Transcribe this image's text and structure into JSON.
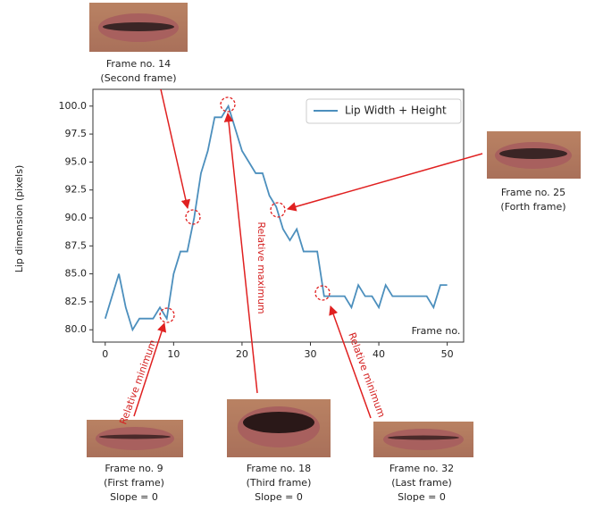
{
  "chart_data": {
    "type": "line",
    "ylabel": "Lip dimension (pixels)",
    "xlabel": "Frame no.",
    "x": [
      0,
      1,
      2,
      3,
      4,
      5,
      6,
      7,
      8,
      9,
      10,
      11,
      12,
      13,
      14,
      15,
      16,
      17,
      18,
      19,
      20,
      21,
      22,
      23,
      24,
      25,
      26,
      27,
      28,
      29,
      30,
      31,
      32,
      33,
      34,
      35,
      36,
      37,
      38,
      39,
      40,
      41,
      42,
      43,
      44,
      45,
      46,
      47,
      48,
      49,
      50
    ],
    "series": [
      {
        "name": "Lip Width + Height",
        "color": "#4c8fbd",
        "values": [
          81,
          83,
          85,
          82,
          80,
          81,
          81,
          81,
          82,
          81,
          85,
          87,
          87,
          90,
          94,
          96,
          99,
          99,
          100,
          98,
          96,
          95,
          94,
          94,
          92,
          91,
          89,
          88,
          89,
          87,
          87,
          87,
          83,
          83,
          83,
          83,
          82,
          84,
          83,
          83,
          82,
          84,
          83,
          83,
          83,
          83,
          83,
          83,
          82,
          84,
          84
        ]
      }
    ],
    "xlim": [
      -1.8,
      52.4
    ],
    "xticks": [
      0,
      10,
      20,
      30,
      40,
      50
    ],
    "ylim": [
      78.9,
      101.5
    ],
    "yticks": [
      {
        "value": 80,
        "label": "80.0"
      },
      {
        "value": 82.5,
        "label": "82.5"
      },
      {
        "value": 85,
        "label": "85.0"
      },
      {
        "value": 87.5,
        "label": "87.5"
      },
      {
        "value": 90,
        "label": "90.0"
      },
      {
        "value": 92.5,
        "label": "92.5"
      },
      {
        "value": 95,
        "label": "95.0"
      },
      {
        "value": 97.5,
        "label": "97.5"
      },
      {
        "value": 100,
        "label": "100.0"
      }
    ],
    "legend": "upper right",
    "annotations": [
      {
        "lines": [
          "Frame no. 14",
          "(Second frame)"
        ]
      },
      {
        "lines": [
          "Frame no. 25",
          "(Forth frame)"
        ]
      },
      {
        "lines": [
          "Frame no. 9",
          "(First frame)",
          "Slope = 0"
        ]
      },
      {
        "lines": [
          "Frame no. 18",
          "(Third frame)",
          "Slope = 0"
        ]
      },
      {
        "lines": [
          "Frame no. 32",
          "(Last frame)",
          "Slope = 0"
        ]
      }
    ],
    "notes": [
      "Relative minimum",
      "Relative maximum",
      "Relative minimum"
    ]
  }
}
